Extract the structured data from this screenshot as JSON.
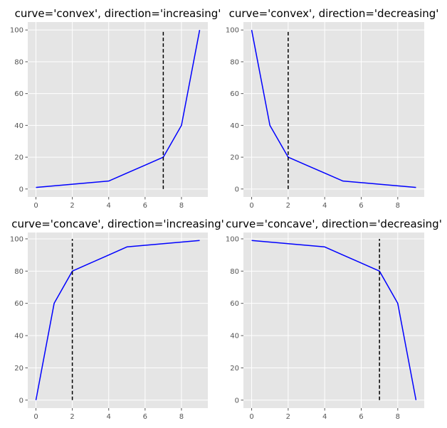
{
  "chart_data": [
    {
      "type": "line",
      "title": "curve='convex', direction='increasing'",
      "x": [
        0,
        1,
        2,
        3,
        4,
        5,
        6,
        7,
        8,
        9
      ],
      "series": [
        {
          "values": [
            1,
            2,
            3,
            4,
            5,
            10,
            15,
            20,
            40,
            100
          ],
          "color": "#0000ff"
        }
      ],
      "knee_x": 7,
      "knee_color": "#000000",
      "xlim": [
        -0.45,
        9.45
      ],
      "ylim": [
        -5,
        105
      ],
      "xticks": [
        0,
        2,
        4,
        6,
        8
      ],
      "yticks": [
        0,
        20,
        40,
        60,
        80,
        100
      ],
      "grid": true
    },
    {
      "type": "line",
      "title": "curve='convex', direction='decreasing'",
      "x": [
        0,
        1,
        2,
        3,
        4,
        5,
        6,
        7,
        8,
        9
      ],
      "series": [
        {
          "values": [
            100,
            40,
            20,
            15,
            10,
            5,
            4,
            3,
            2,
            1
          ],
          "color": "#0000ff"
        }
      ],
      "knee_x": 2,
      "knee_color": "#000000",
      "xlim": [
        -0.45,
        9.45
      ],
      "ylim": [
        -5,
        105
      ],
      "xticks": [
        0,
        2,
        4,
        6,
        8
      ],
      "yticks": [
        0,
        20,
        40,
        60,
        80,
        100
      ],
      "grid": true
    },
    {
      "type": "line",
      "title": "curve='concave', direction='increasing'",
      "x": [
        0,
        1,
        2,
        3,
        4,
        5,
        6,
        7,
        8,
        9
      ],
      "series": [
        {
          "values": [
            0,
            60,
            80,
            85,
            90,
            95,
            96,
            97,
            98,
            99
          ],
          "color": "#0000ff"
        }
      ],
      "knee_x": 2,
      "knee_color": "#000000",
      "xlim": [
        -0.45,
        9.45
      ],
      "ylim": [
        -4.95,
        103.95
      ],
      "xticks": [
        0,
        2,
        4,
        6,
        8
      ],
      "yticks": [
        0,
        20,
        40,
        60,
        80,
        100
      ],
      "grid": true
    },
    {
      "type": "line",
      "title": "curve='concave', direction='decreasing'",
      "x": [
        0,
        1,
        2,
        3,
        4,
        5,
        6,
        7,
        8,
        9
      ],
      "series": [
        {
          "values": [
            99,
            98,
            97,
            96,
            95,
            90,
            85,
            80,
            60,
            0
          ],
          "color": "#0000ff"
        }
      ],
      "knee_x": 7,
      "knee_color": "#000000",
      "xlim": [
        -0.45,
        9.45
      ],
      "ylim": [
        -4.95,
        103.95
      ],
      "xticks": [
        0,
        2,
        4,
        6,
        8
      ],
      "yticks": [
        0,
        20,
        40,
        60,
        80,
        100
      ],
      "grid": true
    }
  ]
}
